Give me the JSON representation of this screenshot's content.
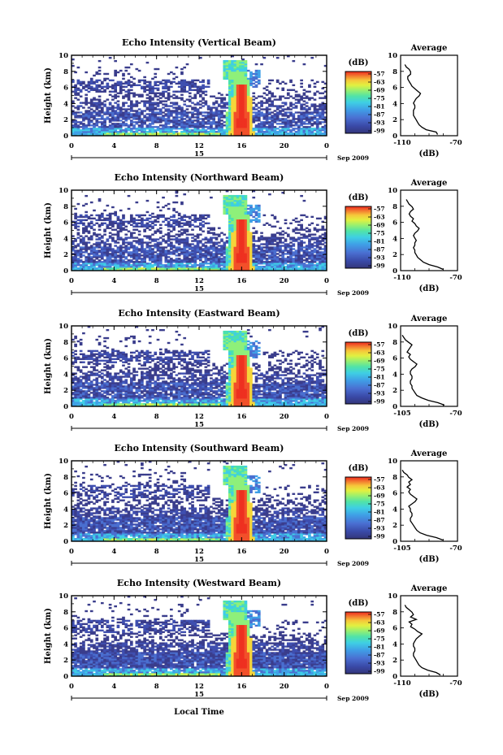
{
  "figure": {
    "xlabel": "Local Time"
  },
  "colorbar": {
    "unit": "(dB)",
    "ticks": [
      "-57",
      "-63",
      "-69",
      "-75",
      "-81",
      "-87",
      "-93",
      "-99"
    ],
    "colors": [
      "#3a3d8c",
      "#3f4fb0",
      "#4a6fd0",
      "#3fa0e6",
      "#3fcde6",
      "#4be0b0",
      "#8ef07a",
      "#d6f24a",
      "#f5d53a",
      "#f59b3a",
      "#f2502a",
      "#ee3020"
    ]
  },
  "panels": [
    {
      "title": "Echo Intensity (Vertical Beam)",
      "avg_xlim_label": [
        "-110",
        "-70"
      ],
      "profile": [
        -84,
        -85,
        -92,
        -95,
        -97,
        -98,
        -99,
        -100,
        -101,
        -101,
        -101,
        -100,
        -100,
        -101,
        -100,
        -99,
        -97,
        -96,
        -98,
        -100,
        -102,
        -103,
        -104,
        -105,
        -105,
        -103,
        -103,
        -104,
        -106,
        -107
      ]
    },
    {
      "title": "Echo Intensity (Northward Beam)",
      "avg_xlim_label": [
        "-110",
        "-70"
      ],
      "profile": [
        -80,
        -84,
        -90,
        -94,
        -96,
        -98,
        -99,
        -100,
        -100,
        -101,
        -100,
        -100,
        -99,
        -100,
        -101,
        -100,
        -98,
        -97,
        -99,
        -100,
        -102,
        -101,
        -103,
        -104,
        -103,
        -101,
        -102,
        -104,
        -105,
        -106
      ]
    },
    {
      "title": "Echo Intensity (Eastward Beam)",
      "avg_xlim_label": [
        "-105",
        "-70"
      ],
      "profile": [
        -78,
        -82,
        -88,
        -92,
        -95,
        -96,
        -97,
        -98,
        -98,
        -99,
        -99,
        -98,
        -98,
        -99,
        -99,
        -98,
        -96,
        -95,
        -97,
        -99,
        -100,
        -99,
        -101,
        -100,
        -99,
        -98,
        -100,
        -102,
        -103,
        -104
      ]
    },
    {
      "title": "Echo Intensity (Southward Beam)",
      "avg_xlim_label": [
        "-105",
        "-70"
      ],
      "profile": [
        -79,
        -83,
        -89,
        -93,
        -95,
        -96,
        -97,
        -98,
        -99,
        -99,
        -98,
        -98,
        -99,
        -99,
        -100,
        -98,
        -96,
        -95,
        -97,
        -99,
        -100,
        -99,
        -101,
        -99,
        -100,
        -98,
        -100,
        -101,
        -103,
        -104
      ]
    },
    {
      "title": "Echo Intensity (Westward Beam)",
      "avg_xlim_label": [
        "-110",
        "-70"
      ],
      "profile": [
        -82,
        -85,
        -91,
        -95,
        -97,
        -98,
        -99,
        -100,
        -101,
        -101,
        -100,
        -100,
        -101,
        -101,
        -100,
        -99,
        -97,
        -95,
        -98,
        -100,
        -103,
        -102,
        -104,
        -99,
        -103,
        -101,
        -102,
        -104,
        -106,
        -107
      ]
    }
  ],
  "chart_data": [
    {
      "type": "heatmap",
      "title": "Echo Intensity (Vertical Beam)",
      "xlabel": "",
      "ylabel": "Height (km)",
      "xlim": [
        0,
        24
      ],
      "ylim": [
        0,
        10
      ],
      "x_ticks": [
        "0",
        "4",
        "8",
        "12",
        "16",
        "20",
        "0"
      ],
      "y_ticks": [
        "0",
        "2",
        "4",
        "6",
        "8",
        "10"
      ],
      "date_label": "15",
      "month_label": "Sep 2009",
      "colorbar_unit": "(dB)",
      "colorbar_range": [
        -99,
        -57
      ]
    },
    {
      "type": "heatmap",
      "title": "Echo Intensity (Northward Beam)",
      "xlabel": "",
      "ylabel": "Height (km)",
      "xlim": [
        0,
        24
      ],
      "ylim": [
        0,
        10
      ],
      "x_ticks": [
        "0",
        "4",
        "8",
        "12",
        "16",
        "20",
        "0"
      ],
      "y_ticks": [
        "0",
        "2",
        "4",
        "6",
        "8",
        "10"
      ],
      "date_label": "15",
      "month_label": "Sep 2009",
      "colorbar_unit": "(dB)",
      "colorbar_range": [
        -99,
        -57
      ]
    },
    {
      "type": "heatmap",
      "title": "Echo Intensity (Eastward Beam)",
      "xlabel": "",
      "ylabel": "Height (km)",
      "xlim": [
        0,
        24
      ],
      "ylim": [
        0,
        10
      ],
      "x_ticks": [
        "0",
        "4",
        "8",
        "12",
        "16",
        "20",
        "0"
      ],
      "y_ticks": [
        "0",
        "2",
        "4",
        "6",
        "8",
        "10"
      ],
      "date_label": "15",
      "month_label": "Sep 2009",
      "colorbar_unit": "(dB)",
      "colorbar_range": [
        -99,
        -57
      ]
    },
    {
      "type": "heatmap",
      "title": "Echo Intensity (Southward Beam)",
      "xlabel": "",
      "ylabel": "Height (km)",
      "xlim": [
        0,
        24
      ],
      "ylim": [
        0,
        10
      ],
      "x_ticks": [
        "0",
        "4",
        "8",
        "12",
        "16",
        "20",
        "0"
      ],
      "y_ticks": [
        "0",
        "2",
        "4",
        "6",
        "8",
        "10"
      ],
      "date_label": "15",
      "month_label": "Sep 2009",
      "colorbar_unit": "(dB)",
      "colorbar_range": [
        -99,
        -57
      ]
    },
    {
      "type": "heatmap",
      "title": "Echo Intensity (Westward Beam)",
      "xlabel": "Local Time",
      "ylabel": "Height (km)",
      "xlim": [
        0,
        24
      ],
      "ylim": [
        0,
        10
      ],
      "x_ticks": [
        "0",
        "4",
        "8",
        "12",
        "16",
        "20",
        "0"
      ],
      "y_ticks": [
        "0",
        "2",
        "4",
        "6",
        "8",
        "10"
      ],
      "date_label": "15",
      "month_label": "Sep 2009",
      "colorbar_unit": "(dB)",
      "colorbar_range": [
        -99,
        -57
      ]
    },
    {
      "type": "line",
      "title": "Average",
      "xlabel": "(dB)",
      "ylabel": "",
      "ylim": [
        0,
        10
      ],
      "y_ticks": [
        "0",
        "2",
        "4",
        "6",
        "8",
        "10"
      ],
      "series_note_values_in": "panels[].profile (dB, 30 height levels)"
    }
  ]
}
